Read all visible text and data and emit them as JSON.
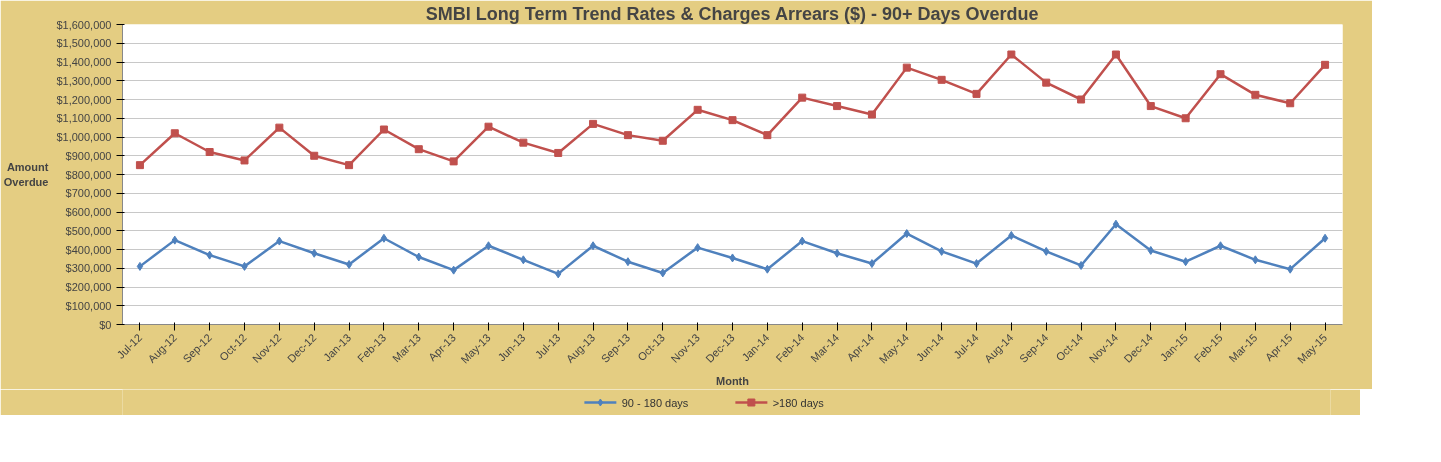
{
  "chart_data": {
    "type": "line",
    "title": "SMBI Long Term Trend Rates & Charges Arrears ($) - 90+ Days Overdue",
    "xlabel": "Month",
    "ylabel": "Amount Overdue",
    "categories": [
      "Jul-12",
      "Aug-12",
      "Sep-12",
      "Oct-12",
      "Nov-12",
      "Dec-12",
      "Jan-13",
      "Feb-13",
      "Mar-13",
      "Apr-13",
      "May-13",
      "Jun-13",
      "Jul-13",
      "Aug-13",
      "Sep-13",
      "Oct-13",
      "Nov-13",
      "Dec-13",
      "Jan-14",
      "Feb-14",
      "Mar-14",
      "Apr-14",
      "May-14",
      "Jun-14",
      "Jul-14",
      "Aug-14",
      "Sep-14",
      "Oct-14",
      "Nov-14",
      "Dec-14",
      "Jan-15",
      "Feb-15",
      "Mar-15",
      "Apr-15",
      "May-15"
    ],
    "series": [
      {
        "name": "90 - 180 days",
        "color": "#4f81bd",
        "marker": "diamond",
        "values": [
          310000,
          450000,
          370000,
          310000,
          445000,
          380000,
          320000,
          460000,
          360000,
          290000,
          420000,
          345000,
          270000,
          420000,
          335000,
          275000,
          410000,
          355000,
          295000,
          445000,
          380000,
          325000,
          485000,
          390000,
          325000,
          475000,
          390000,
          315000,
          535000,
          395000,
          335000,
          420000,
          345000,
          295000,
          460000
        ]
      },
      {
        "name": ">180 days",
        "color": "#c0504d",
        "marker": "square",
        "values": [
          850000,
          1020000,
          920000,
          875000,
          1050000,
          900000,
          850000,
          1040000,
          935000,
          870000,
          1055000,
          970000,
          915000,
          1070000,
          1010000,
          980000,
          1145000,
          1090000,
          1010000,
          1210000,
          1165000,
          1120000,
          1370000,
          1305000,
          1230000,
          1440000,
          1290000,
          1200000,
          1440000,
          1165000,
          1100000,
          1335000,
          1225000,
          1180000,
          1385000
        ]
      }
    ],
    "ylim": [
      0,
      1600000
    ],
    "yticks": [
      {
        "value": 0,
        "label": "$0"
      },
      {
        "value": 100000,
        "label": "$100,000"
      },
      {
        "value": 200000,
        "label": "$200,000"
      },
      {
        "value": 300000,
        "label": "$300,000"
      },
      {
        "value": 400000,
        "label": "$400,000"
      },
      {
        "value": 500000,
        "label": "$500,000"
      },
      {
        "value": 600000,
        "label": "$600,000"
      },
      {
        "value": 700000,
        "label": "$700,000"
      },
      {
        "value": 800000,
        "label": "$800,000"
      },
      {
        "value": 900000,
        "label": "$900,000"
      },
      {
        "value": 1000000,
        "label": "$1,000,000"
      },
      {
        "value": 1100000,
        "label": "$1,100,000"
      },
      {
        "value": 1200000,
        "label": "$1,200,000"
      },
      {
        "value": 1300000,
        "label": "$1,300,000"
      },
      {
        "value": 1400000,
        "label": "$1,400,000"
      },
      {
        "value": 1500000,
        "label": "$1,500,000"
      },
      {
        "value": 1600000,
        "label": "$1,600,000"
      }
    ],
    "grid": "y",
    "legend": "bottom",
    "line_style": "solid"
  }
}
